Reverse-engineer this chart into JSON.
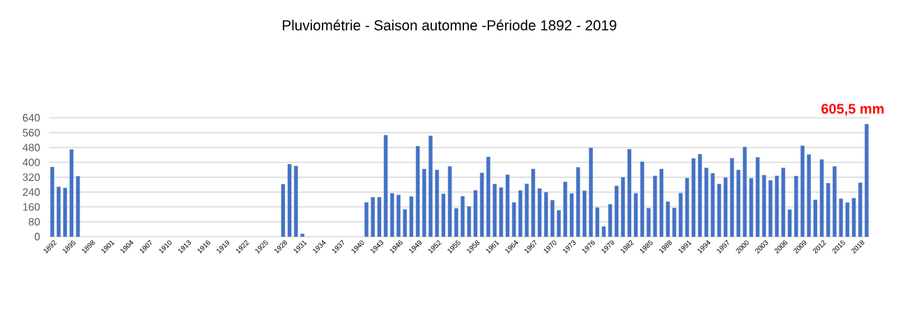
{
  "chart_data": {
    "type": "bar",
    "title": "Pluviométrie - Saison automne -Période 1892 - 2019",
    "categories": [
      "1892",
      null,
      null,
      "1895",
      null,
      null,
      "1898",
      null,
      null,
      "1901",
      null,
      null,
      "1904",
      null,
      null,
      "1907",
      null,
      null,
      "1910",
      null,
      null,
      "1913",
      null,
      null,
      "1916",
      null,
      null,
      "1919",
      null,
      null,
      "1922",
      null,
      null,
      "1925",
      null,
      null,
      "1928",
      null,
      null,
      "1931",
      null,
      null,
      "1934",
      null,
      null,
      "1937",
      null,
      null,
      "1940",
      null,
      null,
      "1943",
      null,
      null,
      "1946",
      null,
      null,
      "1949",
      null,
      null,
      "1952",
      null,
      null,
      "1955",
      null,
      null,
      "1958",
      null,
      null,
      "1961",
      null,
      null,
      "1964",
      null,
      null,
      "1967",
      null,
      null,
      "1970",
      null,
      null,
      "1973",
      null,
      null,
      "1976",
      null,
      null,
      "1979",
      null,
      null,
      "1982",
      null,
      null,
      "1985",
      null,
      null,
      "1988",
      null,
      null,
      "1991",
      null,
      null,
      "1994",
      null,
      null,
      "1997",
      null,
      null,
      "2000",
      null,
      null,
      "2003",
      null,
      null,
      "2006",
      null,
      null,
      "2009",
      null,
      null,
      "2012",
      null,
      null,
      "2015",
      null,
      null,
      "2018",
      null
    ],
    "values": [
      375,
      268,
      262,
      469,
      325,
      null,
      null,
      null,
      null,
      null,
      null,
      null,
      null,
      null,
      null,
      null,
      null,
      null,
      null,
      null,
      null,
      null,
      null,
      null,
      null,
      null,
      null,
      null,
      null,
      null,
      null,
      null,
      null,
      null,
      null,
      null,
      282,
      390,
      380,
      15,
      null,
      null,
      null,
      null,
      null,
      null,
      null,
      null,
      null,
      184,
      212,
      212,
      546,
      233,
      224,
      146,
      216,
      487,
      364,
      543,
      359,
      230,
      378,
      152,
      217,
      162,
      249,
      343,
      429,
      283,
      264,
      333,
      184,
      248,
      284,
      364,
      259,
      239,
      196,
      142,
      295,
      232,
      373,
      247,
      478,
      156,
      54,
      174,
      273,
      319,
      471,
      233,
      403,
      153,
      327,
      364,
      188,
      154,
      234,
      315,
      421,
      444,
      370,
      341,
      283,
      318,
      422,
      359,
      483,
      314,
      427,
      331,
      303,
      327,
      370,
      145,
      326,
      489,
      442,
      198,
      415,
      288,
      378,
      204,
      183,
      207,
      290,
      605.5
    ],
    "value_labels": [
      null,
      null,
      null,
      null,
      null,
      null,
      null,
      null,
      null,
      null,
      null,
      null,
      null,
      null,
      null,
      null,
      null,
      null,
      null,
      null,
      null,
      null,
      null,
      null,
      null,
      null,
      null,
      null,
      null,
      null,
      null,
      null,
      null,
      null,
      null,
      null,
      null,
      null,
      null,
      null,
      null,
      null,
      null,
      null,
      null,
      null,
      null,
      null,
      null,
      null,
      null,
      null,
      null,
      null,
      null,
      null,
      null,
      null,
      null,
      null,
      null,
      null,
      null,
      null,
      null,
      null,
      null,
      null,
      null,
      null,
      null,
      null,
      null,
      null,
      null,
      null,
      null,
      null,
      null,
      null,
      null,
      null,
      null,
      null,
      null,
      null,
      null,
      null,
      null,
      null,
      null,
      null,
      null,
      null,
      null,
      null,
      null,
      null,
      null,
      null,
      null,
      null,
      null,
      null,
      null,
      null,
      null,
      null,
      null,
      null,
      null,
      null,
      null,
      null,
      null,
      null,
      null,
      null,
      null,
      null,
      null,
      null,
      null,
      null,
      null,
      null,
      null,
      "605,5 mm"
    ],
    "color": "#4472c4",
    "ylim": [
      0,
      640
    ],
    "yticks": [
      0,
      80,
      160,
      240,
      320,
      400,
      480,
      560,
      640
    ],
    "grid": "y"
  }
}
